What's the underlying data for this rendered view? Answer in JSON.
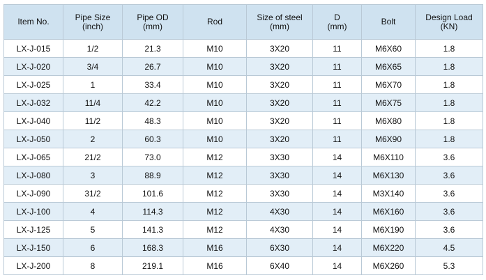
{
  "table": {
    "header": [
      [
        "Item No."
      ],
      [
        "Pipe Size",
        "(inch)"
      ],
      [
        "Pipe OD",
        "(mm)"
      ],
      [
        "Rod"
      ],
      [
        "Size of steel",
        "(mm)"
      ],
      [
        "D",
        "(mm)"
      ],
      [
        "Bolt"
      ],
      [
        "Design Load",
        "(KN)"
      ]
    ],
    "rows": [
      [
        "LX-J-015",
        "1/2",
        "21.3",
        "M10",
        "3X20",
        "11",
        "M6X60",
        "1.8"
      ],
      [
        "LX-J-020",
        "3/4",
        "26.7",
        "M10",
        "3X20",
        "11",
        "M6X65",
        "1.8"
      ],
      [
        "LX-J-025",
        "1",
        "33.4",
        "M10",
        "3X20",
        "11",
        "M6X70",
        "1.8"
      ],
      [
        "LX-J-032",
        "11/4",
        "42.2",
        "M10",
        "3X20",
        "11",
        "M6X75",
        "1.8"
      ],
      [
        "LX-J-040",
        "11/2",
        "48.3",
        "M10",
        "3X20",
        "11",
        "M6X80",
        "1.8"
      ],
      [
        "LX-J-050",
        "2",
        "60.3",
        "M10",
        "3X20",
        "11",
        "M6X90",
        "1.8"
      ],
      [
        "LX-J-065",
        "21/2",
        "73.0",
        "M12",
        "3X30",
        "14",
        "M6X110",
        "3.6"
      ],
      [
        "LX-J-080",
        "3",
        "88.9",
        "M12",
        "3X30",
        "14",
        "M6X130",
        "3.6"
      ],
      [
        "LX-J-090",
        "31/2",
        "101.6",
        "M12",
        "3X30",
        "14",
        "M3X140",
        "3.6"
      ],
      [
        "LX-J-100",
        "4",
        "114.3",
        "M12",
        "4X30",
        "14",
        "M6X160",
        "3.6"
      ],
      [
        "LX-J-125",
        "5",
        "141.3",
        "M12",
        "4X30",
        "14",
        "M6X190",
        "3.6"
      ],
      [
        "LX-J-150",
        "6",
        "168.3",
        "M16",
        "6X30",
        "14",
        "M6X220",
        "4.5"
      ],
      [
        "LX-J-200",
        "8",
        "219.1",
        "M16",
        "6X40",
        "14",
        "M6X260",
        "5.3"
      ]
    ]
  }
}
